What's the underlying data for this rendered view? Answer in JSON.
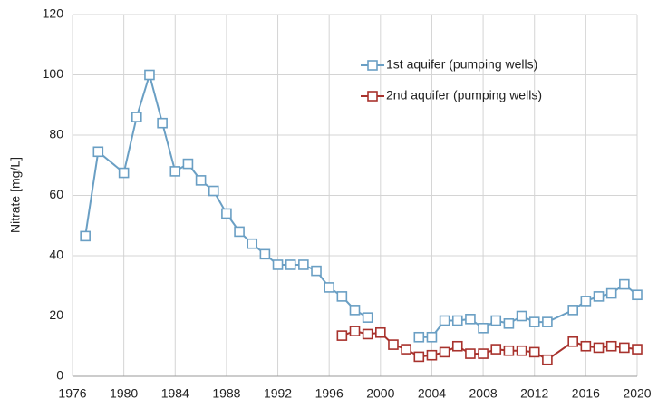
{
  "chart_data": {
    "type": "line",
    "y_label": "Nitrate [mg/L]",
    "x": [
      1977,
      1978,
      1980,
      1981,
      1982,
      1983,
      1984,
      1985,
      1986,
      1987,
      1988,
      1989,
      1990,
      1991,
      1992,
      1993,
      1994,
      1995,
      1996,
      1997,
      1998,
      1999,
      2000,
      2001,
      2002,
      2003,
      2004,
      2005,
      2006,
      2007,
      2008,
      2009,
      2010,
      2011,
      2012,
      2013,
      2015,
      2016,
      2017,
      2018,
      2019,
      2020
    ],
    "series": [
      {
        "name": "1st aquifer (pumping wells)",
        "color": "#6a9fc4",
        "values": [
          46.5,
          74.5,
          67.5,
          86,
          100,
          84,
          68,
          70.5,
          65,
          61.5,
          54,
          48,
          44,
          40.5,
          37,
          37,
          37,
          35,
          29.5,
          26.5,
          22,
          19.5,
          null,
          null,
          null,
          13,
          13,
          18.5,
          18.5,
          19,
          16,
          18.5,
          17.5,
          20,
          18,
          18,
          22,
          25,
          26.5,
          27.5,
          30.5,
          27
        ]
      },
      {
        "name": "2nd aquifer (pumping wells)",
        "color": "#a8322d",
        "values": [
          null,
          null,
          null,
          null,
          null,
          null,
          null,
          null,
          null,
          null,
          null,
          null,
          null,
          null,
          null,
          null,
          null,
          null,
          null,
          13.5,
          15,
          14,
          14.5,
          10.5,
          9,
          6.5,
          7,
          8,
          10,
          7.5,
          7.5,
          9,
          8.5,
          8.5,
          8,
          5.5,
          11.5,
          10,
          9.5,
          10,
          9.5,
          9
        ]
      }
    ],
    "xlim": [
      1976,
      2020
    ],
    "xticks": [
      1976,
      1980,
      1984,
      1988,
      1992,
      1996,
      2000,
      2004,
      2008,
      2012,
      2016,
      2020
    ],
    "ylim": [
      0,
      120
    ],
    "yticks": [
      0,
      20,
      40,
      60,
      80,
      100,
      120
    ],
    "grid": true,
    "legend": "upper right"
  }
}
